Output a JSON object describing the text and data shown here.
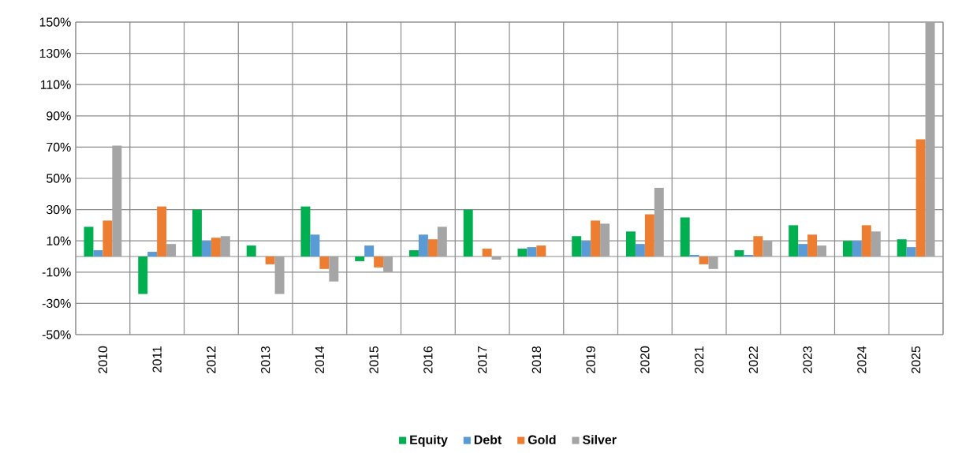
{
  "chart_data": {
    "type": "bar",
    "categories": [
      "2010",
      "2011",
      "2012",
      "2013",
      "2014",
      "2015",
      "2016",
      "2017",
      "2018",
      "2019",
      "2020",
      "2021",
      "2022",
      "2023",
      "2024",
      "2025"
    ],
    "series": [
      {
        "name": "Equity",
        "color": "#00b050",
        "values": [
          19,
          -24,
          30,
          7,
          32,
          -3,
          4,
          30,
          5,
          13,
          16,
          25,
          4,
          20,
          10,
          11
        ]
      },
      {
        "name": "Debt",
        "color": "#5b9bd5",
        "values": [
          4,
          3,
          10,
          0,
          14,
          7,
          14,
          0,
          6,
          10,
          8,
          1,
          1,
          8,
          10,
          6
        ]
      },
      {
        "name": "Gold",
        "color": "#ed7d31",
        "values": [
          23,
          32,
          12,
          -5,
          -8,
          -7,
          11,
          5,
          7,
          23,
          27,
          -5,
          13,
          14,
          20,
          75
        ]
      },
      {
        "name": "Silver",
        "color": "#a5a5a5",
        "values": [
          71,
          8,
          13,
          -24,
          -16,
          -10,
          19,
          -2,
          0,
          21,
          44,
          -8,
          10,
          7,
          16,
          150
        ]
      }
    ],
    "ylim": [
      -50,
      150
    ],
    "yticks": [
      {
        "value": -50,
        "label": "-50%"
      },
      {
        "value": -30,
        "label": "-30%"
      },
      {
        "value": -10,
        "label": "-10%"
      },
      {
        "value": 10,
        "label": "10%"
      },
      {
        "value": 30,
        "label": "30%"
      },
      {
        "value": 50,
        "label": "50%"
      },
      {
        "value": 70,
        "label": "70%"
      },
      {
        "value": 90,
        "label": "90%"
      },
      {
        "value": 110,
        "label": "110%"
      },
      {
        "value": 130,
        "label": "130%"
      },
      {
        "value": 150,
        "label": "150%"
      }
    ],
    "grid": true,
    "legend": "bottom"
  }
}
